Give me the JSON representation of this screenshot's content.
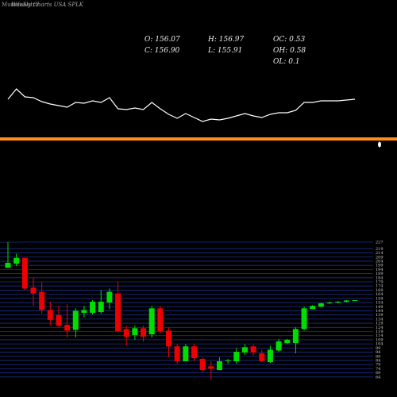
{
  "chart_data": {
    "type": "candlestick",
    "brand": "MunafaSutra",
    "title": "Weekly Charts USA SPLK",
    "info": [
      "O: 156.07",
      "H: 156.97",
      "OC: 0.53",
      "C: 156.90",
      "L: 155.91",
      "OH: 0.58",
      "OL: 0.1"
    ],
    "open": [
      196,
      201,
      208,
      172,
      167,
      145,
      138.7,
      127,
      121,
      141.6,
      141.6,
      142.5,
      154,
      165,
      122,
      114.7,
      123,
      115.6,
      147,
      120,
      101,
      83,
      101,
      85.9,
      77,
      72.4,
      83,
      83,
      93.6,
      101,
      92.6,
      82,
      96,
      105,
      105,
      122,
      146,
      149,
      153,
      154,
      155,
      156.07
    ],
    "high": [
      227,
      213,
      208,
      184,
      179,
      155,
      150,
      152,
      147,
      150,
      157,
      169,
      171,
      179,
      126,
      126,
      126,
      150,
      150,
      124,
      104,
      104,
      104,
      87.8,
      83,
      87.8,
      85.9,
      99,
      104,
      103,
      97,
      102,
      110,
      110,
      124,
      149,
      151,
      154,
      155,
      156,
      157,
      156.97
    ],
    "low": [
      196,
      198,
      169,
      150,
      140.6,
      126,
      124,
      111.8,
      111.8,
      136,
      139.6,
      140.6,
      146,
      118.5,
      102,
      109,
      107,
      111.8,
      116.6,
      87.8,
      80,
      83,
      83,
      70.5,
      61,
      72.4,
      80,
      80,
      90.7,
      89.7,
      82,
      81,
      94.5,
      104,
      92.6,
      120,
      146,
      148,
      152,
      153,
      154,
      155.91
    ],
    "close": [
      202,
      208,
      171,
      165,
      145,
      133,
      126,
      120,
      144,
      145,
      155,
      155,
      167,
      119.5,
      112.8,
      123,
      112.8,
      147,
      119.5,
      101,
      83,
      101,
      86.8,
      72.4,
      74,
      83,
      84,
      94.5,
      100,
      93.6,
      83,
      97,
      107,
      109,
      122,
      147,
      150,
      153,
      154,
      155,
      156.5,
      156.9
    ],
    "up_color": "#00dd00",
    "down_color": "#ee0000",
    "ylim": [
      59,
      227
    ],
    "yticks": [
      227,
      219,
      214,
      209,
      204,
      199,
      194,
      189,
      184,
      179,
      174,
      169,
      164,
      159,
      154,
      149,
      144,
      139,
      134,
      129,
      124,
      119,
      114,
      109,
      104,
      99,
      94,
      89,
      84,
      79,
      74,
      69,
      64
    ],
    "grid": true,
    "indicator": {
      "values": [
        35,
        48,
        38,
        37,
        32,
        29,
        27,
        25,
        31,
        30,
        33,
        31,
        37,
        23,
        22,
        24,
        22,
        31,
        23,
        16,
        11,
        17,
        12,
        7,
        10,
        9,
        11,
        14,
        17,
        14,
        12,
        16,
        18,
        18,
        21,
        31,
        31,
        33,
        33,
        33,
        34,
        35
      ],
      "ylim": [
        0,
        60
      ],
      "color": "#ffffff"
    }
  }
}
